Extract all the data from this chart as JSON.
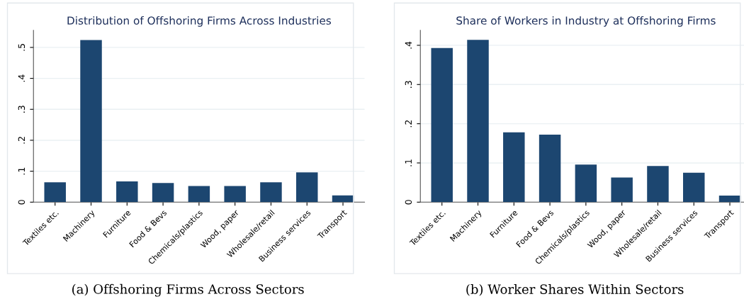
{
  "chart_data": [
    {
      "type": "bar",
      "title": "Distribution of Offshoring Firms Across Industries",
      "categories": [
        "Textiles etc.",
        "Machinery",
        "Furniture",
        "Food & Bevs",
        "Chemicals/plastics",
        "Wood, paper",
        "Wholesale/retail",
        "Business services",
        "Transport"
      ],
      "values": [
        0.064,
        0.524,
        0.067,
        0.062,
        0.052,
        0.052,
        0.064,
        0.096,
        0.022
      ],
      "color": "#1c4670",
      "ylim": [
        0,
        0.555
      ],
      "yticks": [
        {
          "value": 0,
          "label": "0"
        },
        {
          "value": 0.1,
          "label": ".1"
        },
        {
          "value": 0.2,
          "label": ".2"
        },
        {
          "value": 0.3,
          "label": ".3"
        },
        {
          "value": 0.4,
          "label": ".4"
        },
        {
          "value": 0.5,
          "label": ".5"
        }
      ],
      "grid": "y",
      "annotations": [
        "(a) Offshoring Firms Across Sectors"
      ]
    },
    {
      "type": "bar",
      "title": "Share of Workers in Industry at Offshoring Firms",
      "categories": [
        "Textiles etc.",
        "Machinery",
        "Furniture",
        "Food & Bevs",
        "Chemicals/plastics",
        "Wood, paper",
        "Wholesale/retail",
        "Business services",
        "Transport"
      ],
      "values": [
        0.393,
        0.414,
        0.178,
        0.172,
        0.096,
        0.063,
        0.092,
        0.075,
        0.017
      ],
      "color": "#1c4670",
      "ylim": [
        0,
        0.438
      ],
      "yticks": [
        {
          "value": 0,
          "label": "0"
        },
        {
          "value": 0.1,
          "label": ".1"
        },
        {
          "value": 0.2,
          "label": ".2"
        },
        {
          "value": 0.3,
          "label": ".3"
        },
        {
          "value": 0.4,
          "label": ".4"
        }
      ],
      "grid": "y",
      "annotations": [
        "(b) Worker Shares Within Sectors"
      ]
    }
  ]
}
